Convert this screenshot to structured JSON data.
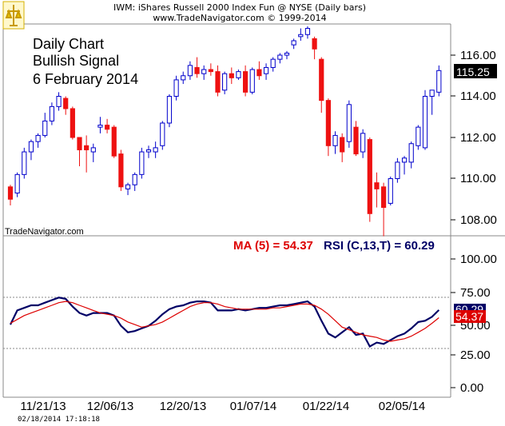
{
  "header": {
    "title": "IWM:  iShares Russell 2000 Index Fun @ NYSE  (Daily bars)",
    "subtitle": "www.TradeNavigator.com © 1999-2014"
  },
  "annotation": [
    "Daily Chart",
    "Bullish Signal",
    "6 February 2014"
  ],
  "watermark": "TradeNavigator.com",
  "timestamp": "02/18/2014 17:18:18",
  "price_labels": [
    "116.00",
    "114.00",
    "112.00",
    "110.00",
    "108.00"
  ],
  "last_price": "115.25",
  "rsi_labels": [
    "100.00",
    "75.00",
    "50.00",
    "25.00",
    "0.00"
  ],
  "date_labels": [
    "11/21/13",
    "12/06/13",
    "12/20/13",
    "01/07/14",
    "01/22/14",
    "02/05/14"
  ],
  "legend": {
    "ma": "MA (5) = 54.37",
    "rsi": "RSI (C,13,T) = 60.29"
  },
  "rsi_tag": "60.29",
  "ma_tag": "54.37",
  "colors": {
    "up": "#0000cc",
    "down": "#ee1111",
    "ma": "#dd0000",
    "rsi": "#000066",
    "grid": "#888888"
  },
  "chart_data": [
    {
      "type": "candlestick",
      "x_labels": [
        "11/21/13",
        "12/06/13",
        "12/20/13",
        "01/07/14",
        "01/22/14",
        "02/05/14"
      ],
      "last": 115.25,
      "ohlc": [
        [
          109.6,
          109.7,
          108.7,
          109.0
        ],
        [
          109.3,
          110.3,
          109.1,
          110.2
        ],
        [
          110.2,
          111.5,
          110.0,
          111.3
        ],
        [
          111.3,
          111.9,
          110.9,
          111.8
        ],
        [
          111.8,
          112.2,
          111.5,
          112.1
        ],
        [
          112.1,
          113.2,
          112.0,
          112.8
        ],
        [
          112.8,
          113.7,
          112.6,
          113.5
        ],
        [
          113.5,
          114.2,
          113.3,
          114.0
        ],
        [
          113.9,
          114.0,
          113.1,
          113.4
        ],
        [
          113.4,
          113.5,
          111.9,
          112.0
        ],
        [
          112.0,
          112.0,
          110.6,
          111.4
        ],
        [
          111.6,
          112.1,
          110.3,
          111.4
        ],
        [
          111.3,
          111.7,
          110.8,
          111.5
        ],
        [
          112.5,
          113.0,
          112.2,
          112.6
        ],
        [
          112.6,
          112.9,
          112.2,
          112.4
        ],
        [
          112.5,
          112.6,
          111.0,
          111.1
        ],
        [
          111.2,
          111.4,
          109.4,
          109.6
        ],
        [
          109.5,
          109.8,
          109.2,
          109.7
        ],
        [
          109.7,
          110.3,
          109.4,
          110.2
        ],
        [
          110.2,
          111.5,
          110.0,
          111.3
        ],
        [
          111.3,
          111.6,
          111.0,
          111.4
        ],
        [
          111.3,
          111.8,
          111.0,
          111.5
        ],
        [
          111.6,
          112.8,
          111.4,
          112.7
        ],
        [
          112.7,
          114.1,
          112.5,
          114.0
        ],
        [
          114.0,
          115.0,
          113.8,
          114.8
        ],
        [
          114.8,
          115.2,
          114.6,
          115.0
        ],
        [
          115.0,
          115.7,
          114.8,
          115.5
        ],
        [
          115.4,
          115.9,
          114.9,
          115.1
        ],
        [
          115.1,
          115.5,
          114.8,
          115.3
        ],
        [
          115.3,
          115.6,
          115.0,
          115.2
        ],
        [
          115.2,
          115.5,
          114.0,
          114.2
        ],
        [
          114.3,
          115.2,
          114.1,
          115.1
        ],
        [
          115.1,
          115.4,
          114.6,
          114.9
        ],
        [
          114.9,
          115.3,
          114.8,
          115.2
        ],
        [
          115.2,
          115.5,
          114.0,
          114.2
        ],
        [
          114.2,
          115.4,
          114.1,
          115.3
        ],
        [
          115.3,
          115.7,
          114.8,
          115.0
        ],
        [
          115.1,
          115.6,
          114.8,
          115.4
        ],
        [
          115.4,
          115.9,
          115.2,
          115.8
        ],
        [
          115.8,
          116.1,
          115.6,
          116.0
        ],
        [
          116.0,
          116.2,
          115.8,
          116.1
        ],
        [
          116.5,
          116.8,
          116.3,
          116.7
        ],
        [
          116.9,
          117.3,
          116.7,
          117.0
        ],
        [
          117.0,
          117.4,
          116.8,
          117.3
        ],
        [
          116.8,
          116.9,
          115.8,
          116.3
        ],
        [
          115.8,
          115.9,
          113.2,
          113.8
        ],
        [
          113.8,
          113.9,
          111.1,
          111.6
        ],
        [
          111.6,
          112.3,
          111.2,
          112.1
        ],
        [
          112.0,
          112.2,
          110.8,
          111.3
        ],
        [
          111.8,
          113.8,
          111.5,
          113.6
        ],
        [
          112.5,
          112.8,
          111.1,
          111.2
        ],
        [
          111.3,
          112.4,
          111.0,
          112.2
        ],
        [
          111.9,
          112.0,
          107.9,
          108.3
        ],
        [
          109.8,
          110.3,
          108.6,
          109.5
        ],
        [
          109.6,
          109.8,
          107.2,
          108.6
        ],
        [
          108.8,
          110.1,
          108.7,
          110.0
        ],
        [
          110.0,
          111.0,
          109.8,
          110.8
        ],
        [
          110.8,
          111.1,
          110.2,
          111.0
        ],
        [
          110.8,
          111.8,
          110.5,
          111.7
        ],
        [
          111.6,
          112.6,
          111.4,
          112.5
        ],
        [
          111.5,
          114.3,
          111.4,
          114.0
        ],
        [
          114.0,
          114.3,
          113.1,
          114.3
        ],
        [
          114.2,
          115.5,
          114.0,
          115.25
        ]
      ]
    },
    {
      "type": "line",
      "title": "RSI (C,13,T)",
      "ylim": [
        0,
        100
      ],
      "reference_lines": [
        75,
        25
      ],
      "series": [
        {
          "name": "RSI (C,13,T)",
          "values": [
            49,
            60,
            62,
            64,
            64,
            66,
            68,
            70,
            69,
            63,
            58,
            56,
            58,
            58,
            58,
            56,
            48,
            43,
            44,
            46,
            48,
            52,
            57,
            61,
            63,
            64,
            66,
            67,
            67,
            66,
            60,
            60,
            60,
            61,
            60,
            61,
            62,
            62,
            63,
            64,
            64,
            65,
            66,
            67,
            63,
            52,
            42,
            39,
            43,
            47,
            41,
            42,
            32,
            35,
            34,
            37,
            40,
            42,
            46,
            51,
            52,
            55,
            60.29
          ]
        },
        {
          "name": "MA (5)",
          "values": [
            50,
            53,
            56,
            58,
            60,
            62,
            64,
            66,
            67,
            66,
            64,
            62,
            60,
            58,
            57,
            56,
            54,
            51,
            49,
            47,
            48,
            49,
            51,
            54,
            57,
            60,
            63,
            65,
            66,
            66,
            65,
            63,
            62,
            61,
            61,
            61,
            61,
            61,
            62,
            62,
            63,
            64,
            65,
            65,
            64,
            61,
            57,
            52,
            47,
            45,
            43,
            41,
            40,
            39,
            37,
            36,
            37,
            38,
            40,
            43,
            46,
            50,
            54.37
          ]
        }
      ]
    }
  ]
}
